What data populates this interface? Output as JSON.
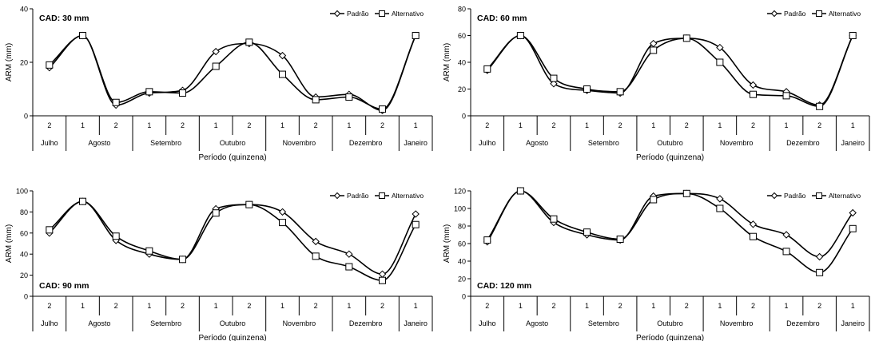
{
  "x_axis": {
    "quinzenas": [
      "2",
      "1",
      "2",
      "1",
      "2",
      "1",
      "2",
      "1",
      "2",
      "1",
      "2",
      "1"
    ],
    "months": [
      {
        "label": "Julho",
        "span": [
          0,
          0
        ]
      },
      {
        "label": "Agosto",
        "span": [
          1,
          2
        ]
      },
      {
        "label": "Setembro",
        "span": [
          3,
          4
        ]
      },
      {
        "label": "Outubro",
        "span": [
          5,
          6
        ]
      },
      {
        "label": "Novembro",
        "span": [
          7,
          8
        ]
      },
      {
        "label": "Dezembro",
        "span": [
          9,
          10
        ]
      },
      {
        "label": "Janeiro",
        "span": [
          11,
          11
        ]
      }
    ],
    "xlabel": "Período (quinzena)"
  },
  "ylabel": "ARM (mm)",
  "legend": [
    "Padrão",
    "Alternativo"
  ],
  "chart_data": [
    {
      "type": "line",
      "title": "CAD: 30 mm",
      "categories": [
        "2 Julho",
        "1 Agosto",
        "2 Agosto",
        "1 Setembro",
        "2 Setembro",
        "1 Outubro",
        "2 Outubro",
        "1 Novembro",
        "2 Novembro",
        "1 Dezembro",
        "2 Dezembro",
        "1 Janeiro"
      ],
      "ylim": [
        0,
        40
      ],
      "yticks": [
        0,
        20,
        40
      ],
      "series": [
        {
          "name": "Padrão",
          "marker": "diamond",
          "values": [
            18,
            30,
            4,
            8.5,
            9.5,
            24,
            27,
            22.5,
            7,
            8,
            2,
            30
          ]
        },
        {
          "name": "Alternativo",
          "marker": "square",
          "values": [
            19,
            30,
            5,
            9,
            8.5,
            18.5,
            27.5,
            15.5,
            6,
            7,
            2.5,
            30
          ]
        }
      ],
      "legend_position": "top-right",
      "title_position": "top-left"
    },
    {
      "type": "line",
      "title": "CAD: 60 mm",
      "categories": [
        "2 Julho",
        "1 Agosto",
        "2 Agosto",
        "1 Setembro",
        "2 Setembro",
        "1 Outubro",
        "2 Outubro",
        "1 Novembro",
        "2 Novembro",
        "1 Dezembro",
        "2 Dezembro",
        "1 Janeiro"
      ],
      "ylim": [
        0,
        80
      ],
      "yticks": [
        0,
        20,
        40,
        60,
        80
      ],
      "series": [
        {
          "name": "Padrão",
          "marker": "diamond",
          "values": [
            34,
            60,
            24,
            19,
            17,
            54,
            58,
            51,
            23,
            18,
            8,
            60
          ]
        },
        {
          "name": "Alternativo",
          "marker": "square",
          "values": [
            35,
            60,
            28,
            20,
            18,
            49,
            58,
            40,
            16,
            15,
            7,
            60
          ]
        }
      ],
      "legend_position": "top-right",
      "title_position": "top-left"
    },
    {
      "type": "line",
      "title": "CAD: 90 mm",
      "categories": [
        "2 Julho",
        "1 Agosto",
        "2 Agosto",
        "1 Setembro",
        "2 Setembro",
        "1 Outubro",
        "2 Outubro",
        "1 Novembro",
        "2 Novembro",
        "1 Dezembro",
        "2 Dezembro",
        "1 Janeiro"
      ],
      "ylim": [
        0,
        100
      ],
      "yticks": [
        0,
        20,
        40,
        60,
        80,
        100
      ],
      "series": [
        {
          "name": "Padrão",
          "marker": "diamond",
          "values": [
            60,
            90,
            53,
            40,
            35,
            83,
            87,
            80,
            52,
            40,
            21,
            78
          ]
        },
        {
          "name": "Alternativo",
          "marker": "square",
          "values": [
            63,
            90,
            57,
            43,
            35,
            79,
            87,
            70,
            38,
            28,
            15,
            68
          ]
        }
      ],
      "legend_position": "top-right",
      "title_position": "bottom-left"
    },
    {
      "type": "line",
      "title": "CAD: 120 mm",
      "categories": [
        "2 Julho",
        "1 Agosto",
        "2 Agosto",
        "1 Setembro",
        "2 Setembro",
        "1 Outubro",
        "2 Outubro",
        "1 Novembro",
        "2 Novembro",
        "1 Dezembro",
        "2 Dezembro",
        "1 Janeiro"
      ],
      "ylim": [
        0,
        120
      ],
      "yticks": [
        0,
        20,
        40,
        60,
        80,
        100,
        120
      ],
      "series": [
        {
          "name": "Padrão",
          "marker": "diamond",
          "values": [
            62,
            120,
            84,
            70,
            64,
            114,
            117,
            111,
            82,
            70,
            45,
            95
          ]
        },
        {
          "name": "Alternativo",
          "marker": "square",
          "values": [
            64,
            120,
            88,
            73,
            65,
            110,
            117,
            100,
            68,
            51,
            27,
            77
          ]
        }
      ],
      "legend_position": "top-right",
      "title_position": "bottom-left"
    }
  ]
}
